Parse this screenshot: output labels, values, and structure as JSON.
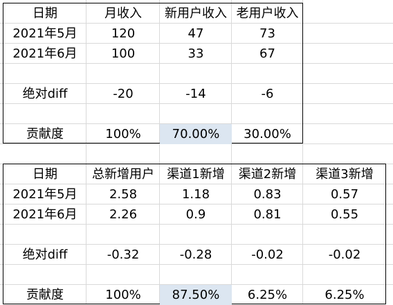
{
  "table1": {
    "headers": [
      "日期",
      "月收入",
      "新用户收入",
      "老用户收入"
    ],
    "rows": [
      [
        "2021年5月",
        "120",
        "47",
        "73"
      ],
      [
        "2021年6月",
        "100",
        "33",
        "67"
      ],
      [
        "",
        "",
        "",
        ""
      ],
      [
        "绝对diff",
        "-20",
        "-14",
        "-6"
      ],
      [
        "",
        "",
        "",
        ""
      ],
      [
        "贡献度",
        "100%",
        "70.00%",
        "30.00%"
      ]
    ]
  },
  "table2": {
    "headers": [
      "日期",
      "总新增用户",
      "渠道1新增",
      "渠道2新增",
      "渠道3新增"
    ],
    "rows": [
      [
        "2021年5月",
        "2.58",
        "1.18",
        "0.83",
        "0.57"
      ],
      [
        "2021年6月",
        "2.26",
        "0.9",
        "0.81",
        "0.55"
      ],
      [
        "",
        "",
        "",
        "",
        ""
      ],
      [
        "绝对diff",
        "-0.32",
        "-0.28",
        "-0.02",
        "-0.02"
      ],
      [
        "",
        "",
        "",
        "",
        ""
      ],
      [
        "贡献度",
        "100%",
        "87.50%",
        "6.25%",
        "6.25%"
      ]
    ]
  },
  "highlight_color": "#dce6f1"
}
